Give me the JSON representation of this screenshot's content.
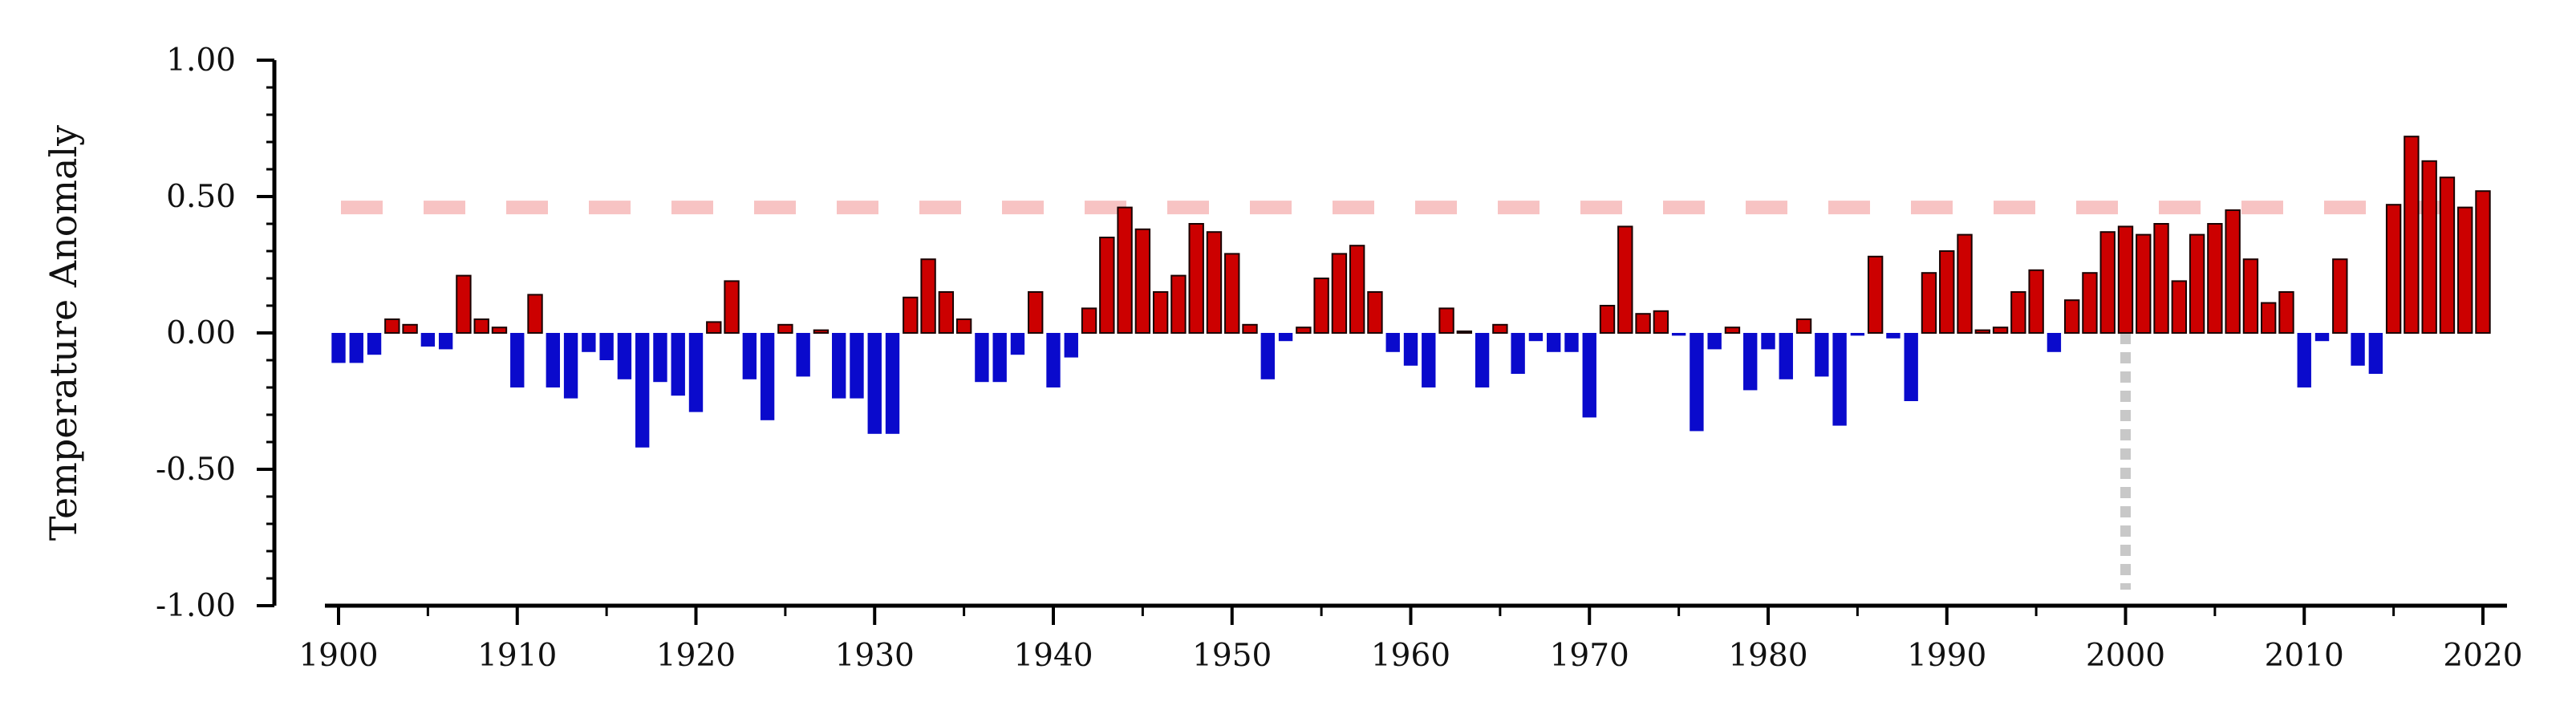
{
  "chart_data": {
    "type": "bar",
    "title": "",
    "xlabel": "",
    "ylabel": "Temperature Anomaly",
    "xlim": [
      1900,
      2020
    ],
    "ylim": [
      -1.0,
      1.0
    ],
    "x_ticks": [
      1900,
      1910,
      1920,
      1930,
      1940,
      1950,
      1960,
      1970,
      1980,
      1990,
      2000,
      2010,
      2020
    ],
    "y_ticks": [
      "1.00",
      "0.50",
      "0.00",
      "-0.50",
      "-1.00"
    ],
    "grid": false,
    "legend": "none",
    "colors": {
      "positive": "#cc0000",
      "negative": "#0a0acc",
      "reference_line": "#f7c3c3",
      "marker_line": "#c8c8c8"
    },
    "reference_line_y": 0.46,
    "marker_line_x": 2000,
    "x": [
      1900,
      1901,
      1902,
      1903,
      1904,
      1905,
      1906,
      1907,
      1908,
      1909,
      1910,
      1911,
      1912,
      1913,
      1914,
      1915,
      1916,
      1917,
      1918,
      1919,
      1920,
      1921,
      1922,
      1923,
      1924,
      1925,
      1926,
      1927,
      1928,
      1929,
      1930,
      1931,
      1932,
      1933,
      1934,
      1935,
      1936,
      1937,
      1938,
      1939,
      1940,
      1941,
      1942,
      1943,
      1944,
      1945,
      1946,
      1947,
      1948,
      1949,
      1950,
      1951,
      1952,
      1953,
      1954,
      1955,
      1956,
      1957,
      1958,
      1959,
      1960,
      1961,
      1962,
      1963,
      1964,
      1965,
      1966,
      1967,
      1968,
      1969,
      1970,
      1971,
      1972,
      1973,
      1974,
      1975,
      1976,
      1977,
      1978,
      1979,
      1980,
      1981,
      1982,
      1983,
      1984,
      1985,
      1986,
      1987,
      1988,
      1989,
      1990,
      1991,
      1992,
      1993,
      1994,
      1995,
      1996,
      1997,
      1998,
      1999,
      2000,
      2001,
      2002,
      2003,
      2004,
      2005,
      2006,
      2007,
      2008,
      2009,
      2010,
      2011,
      2012,
      2013,
      2014,
      2015,
      2016,
      2017,
      2018,
      2019,
      2020
    ],
    "values": [
      -0.11,
      -0.11,
      -0.08,
      0.05,
      0.03,
      -0.05,
      -0.06,
      0.21,
      0.05,
      0.02,
      -0.2,
      0.14,
      -0.2,
      -0.24,
      -0.07,
      -0.1,
      -0.17,
      -0.42,
      -0.18,
      -0.23,
      -0.29,
      0.04,
      0.19,
      -0.17,
      -0.32,
      0.03,
      -0.16,
      0.01,
      -0.24,
      -0.24,
      -0.37,
      -0.37,
      0.13,
      0.27,
      0.15,
      0.05,
      -0.18,
      -0.18,
      -0.08,
      0.15,
      -0.2,
      -0.09,
      0.09,
      0.35,
      0.46,
      0.38,
      0.15,
      0.21,
      0.4,
      0.37,
      0.29,
      0.03,
      -0.17,
      -0.03,
      0.02,
      0.2,
      0.29,
      0.32,
      0.15,
      -0.07,
      -0.12,
      -0.2,
      0.09,
      0.0,
      -0.2,
      0.03,
      -0.15,
      -0.03,
      -0.07,
      -0.07,
      -0.31,
      0.1,
      0.39,
      0.07,
      0.08,
      -0.01,
      -0.36,
      -0.06,
      0.02,
      -0.21,
      -0.06,
      -0.17,
      0.05,
      -0.16,
      -0.34,
      -0.01,
      0.28,
      -0.02,
      -0.25,
      0.22,
      0.3,
      0.36,
      0.01,
      0.02,
      0.15,
      0.23,
      -0.07,
      0.12,
      0.22,
      0.37,
      0.39,
      0.36,
      0.4,
      0.19,
      0.36,
      0.4,
      0.45,
      0.27,
      0.11,
      0.15,
      -0.2,
      -0.03,
      0.27,
      -0.12,
      -0.15,
      0.47,
      0.72,
      0.63,
      0.57,
      0.46,
      0.52
    ]
  }
}
